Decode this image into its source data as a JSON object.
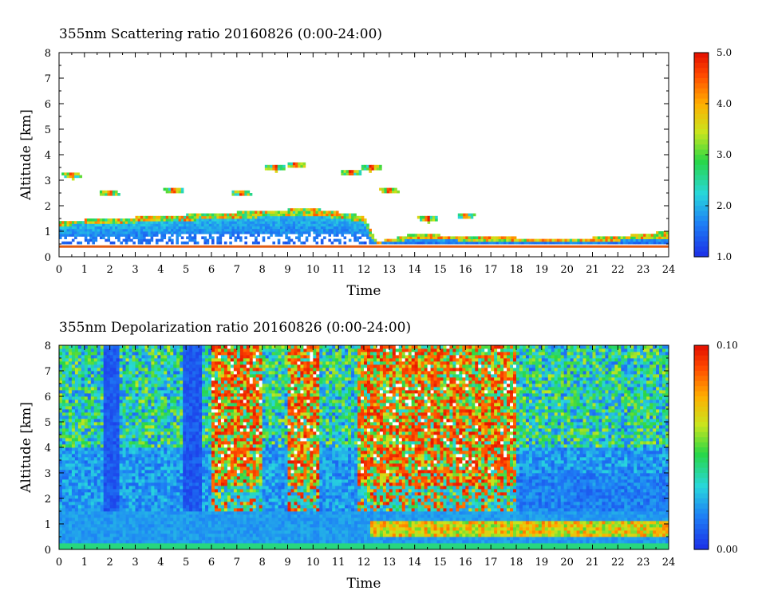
{
  "chart_data": [
    {
      "type": "heatmap",
      "title": "355nm Scattering ratio  20160826 (0:00-24:00)",
      "xlabel": "Time",
      "ylabel": "Altitude [km]",
      "xlim": [
        0,
        24
      ],
      "ylim": [
        0,
        8
      ],
      "x_ticks": [
        "0",
        "1",
        "2",
        "3",
        "4",
        "5",
        "6",
        "7",
        "8",
        "9",
        "10",
        "11",
        "12",
        "13",
        "14",
        "15",
        "16",
        "17",
        "18",
        "19",
        "20",
        "21",
        "22",
        "23",
        "24"
      ],
      "y_ticks": [
        "0",
        "1",
        "2",
        "3",
        "4",
        "5",
        "6",
        "7",
        "8"
      ],
      "colorbar": {
        "range": [
          1.0,
          5.0
        ],
        "tick_labels": [
          "5.0",
          "4.0",
          "3.0",
          "2.0",
          "1.0"
        ]
      },
      "features": {
        "boundary_layer_top_km": [
          [
            0,
            1.4
          ],
          [
            2,
            1.5
          ],
          [
            4,
            1.6
          ],
          [
            6,
            1.7
          ],
          [
            8,
            1.8
          ],
          [
            10,
            1.9
          ],
          [
            12,
            1.6
          ],
          [
            12.5,
            0.6
          ],
          [
            14,
            0.9
          ],
          [
            16,
            0.8
          ],
          [
            18,
            0.75
          ],
          [
            20,
            0.7
          ],
          [
            22,
            0.8
          ],
          [
            24,
            1.0
          ]
        ],
        "cloud_patches": [
          [
            0.5,
            3.2
          ],
          [
            2,
            2.5
          ],
          [
            4.5,
            2.6
          ],
          [
            7.2,
            2.5
          ],
          [
            8.5,
            3.5
          ],
          [
            9.3,
            3.6
          ],
          [
            11.5,
            3.3
          ],
          [
            12.3,
            3.5
          ],
          [
            13,
            2.6
          ],
          [
            14.5,
            1.5
          ],
          [
            16,
            1.6
          ]
        ],
        "surface_layer_km": 0.4
      }
    },
    {
      "type": "heatmap",
      "title": "355nm Depolarization ratio  20160826 (0:00-24:00)",
      "xlabel": "Time",
      "ylabel": "Altitude [km]",
      "xlim": [
        0,
        24
      ],
      "ylim": [
        0,
        8
      ],
      "x_ticks": [
        "0",
        "1",
        "2",
        "3",
        "4",
        "5",
        "6",
        "7",
        "8",
        "9",
        "10",
        "11",
        "12",
        "13",
        "14",
        "15",
        "16",
        "17",
        "18",
        "19",
        "20",
        "21",
        "22",
        "23",
        "24"
      ],
      "y_ticks": [
        "0",
        "1",
        "2",
        "3",
        "4",
        "5",
        "6",
        "7",
        "8"
      ],
      "colorbar": {
        "range": [
          0.0,
          0.1
        ],
        "tick_labels": [
          "0.10",
          "0.00"
        ]
      },
      "features": {
        "high_depol_periods_h": [
          [
            6,
            8
          ],
          [
            9,
            10.3
          ],
          [
            11.7,
            18
          ]
        ],
        "low_depol_columns_h": [
          [
            1.7,
            2.4
          ],
          [
            4.9,
            5.6
          ]
        ],
        "elevated_band_km": 0.8
      }
    }
  ],
  "colors": {
    "low": "#1c3cff",
    "mid": "#27d23c",
    "high": "#ff2a00"
  }
}
